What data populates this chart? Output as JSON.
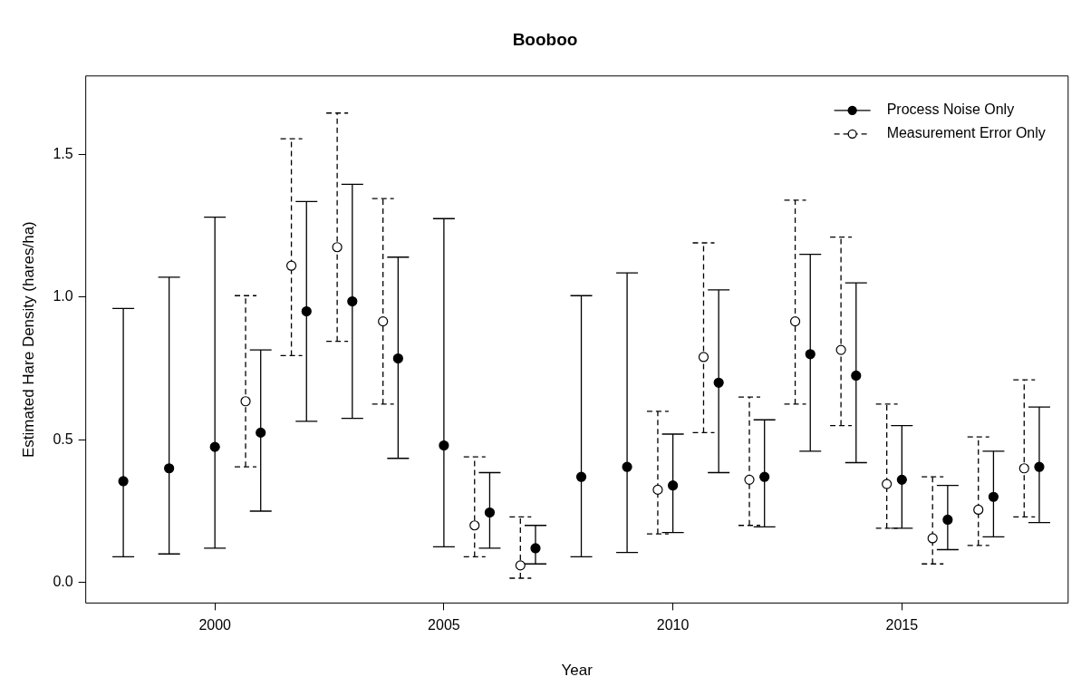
{
  "chart_data": {
    "type": "scatter",
    "title": "Booboo",
    "xlabel": "Year",
    "ylabel": "Estimated Hare Density (hares/ha)",
    "xlim": [
      1997.18,
      2018.63
    ],
    "ylim": [
      -0.072,
      1.775
    ],
    "xticks": [
      2000,
      2005,
      2010,
      2015
    ],
    "yticks": [
      {
        "value": 0,
        "label": "0.0"
      },
      0.5,
      {
        "value": 1,
        "label": "1.0"
      },
      1.5
    ],
    "grid": false,
    "legend": "top right",
    "marker": "circle",
    "series": [
      {
        "name": "Process Noise Only",
        "color": "#000000",
        "line_style": "solid",
        "x": [
          1998,
          1999,
          2000,
          2001,
          2002,
          2003,
          2004,
          2005,
          2006,
          2007,
          2008,
          2009,
          2010,
          2011,
          2012,
          2013,
          2014,
          2015,
          2016,
          2017,
          2018
        ],
        "values": [
          0.355,
          0.4,
          0.475,
          0.525,
          0.95,
          0.985,
          0.785,
          0.48,
          0.245,
          0.12,
          0.37,
          0.405,
          0.34,
          0.7,
          0.37,
          0.8,
          0.725,
          0.36,
          0.22,
          0.3,
          0.405
        ],
        "errors": [
          [
            0.09,
            0.96
          ],
          [
            0.1,
            1.07
          ],
          [
            0.12,
            1.28
          ],
          [
            0.25,
            0.815
          ],
          [
            0.565,
            1.335
          ],
          [
            0.575,
            1.395
          ],
          [
            0.435,
            1.14
          ],
          [
            0.125,
            1.275
          ],
          [
            0.12,
            0.385
          ],
          [
            0.065,
            0.2
          ],
          [
            0.09,
            1.005
          ],
          [
            0.105,
            1.085
          ],
          [
            0.175,
            0.52
          ],
          [
            0.385,
            1.025
          ],
          [
            0.195,
            0.57
          ],
          [
            0.46,
            1.15
          ],
          [
            0.42,
            1.05
          ],
          [
            0.19,
            0.55
          ],
          [
            0.115,
            0.34
          ],
          [
            0.16,
            0.46
          ],
          [
            0.21,
            0.615
          ]
        ]
      },
      {
        "name": "Measurement Error Only",
        "color": "#000000",
        "line_style": "dashed",
        "x": [
          2000.67,
          2001.67,
          2002.67,
          2003.67,
          2005.67,
          2006.67,
          2009.67,
          2010.67,
          2011.67,
          2012.67,
          2013.67,
          2014.67,
          2015.67,
          2016.67,
          2017.67
        ],
        "values": [
          0.635,
          1.11,
          1.175,
          0.915,
          0.2,
          0.06,
          0.325,
          0.79,
          0.36,
          0.915,
          0.815,
          0.345,
          0.155,
          0.255,
          0.4
        ],
        "errors": [
          [
            0.405,
            1.005
          ],
          [
            0.795,
            1.555
          ],
          [
            0.845,
            1.645
          ],
          [
            0.625,
            1.345
          ],
          [
            0.09,
            0.44
          ],
          [
            0.015,
            0.23
          ],
          [
            0.17,
            0.6
          ],
          [
            0.525,
            1.19
          ],
          [
            0.2,
            0.65
          ],
          [
            0.625,
            1.34
          ],
          [
            0.55,
            1.21
          ],
          [
            0.19,
            0.625
          ],
          [
            0.065,
            0.37
          ],
          [
            0.13,
            0.51
          ],
          [
            0.23,
            0.71
          ]
        ]
      }
    ]
  }
}
